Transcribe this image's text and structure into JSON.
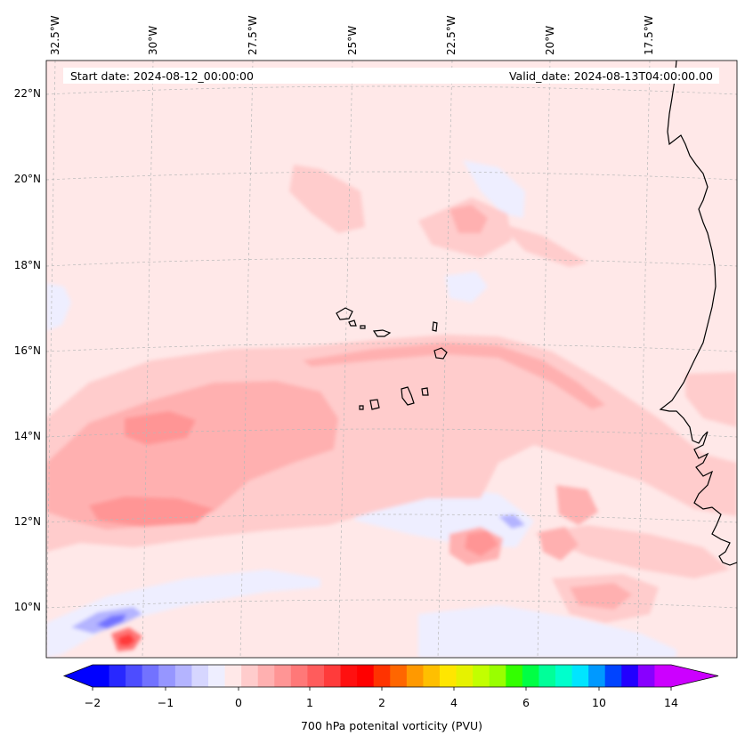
{
  "map": {
    "title_start": "Start date: 2024-08-12_00:00:00",
    "title_valid": "Valid_date: 2024-08-13T04:00:00.00",
    "longitude_labels": [
      "32.5°W",
      "30°W",
      "27.5°W",
      "25°W",
      "22.5°W",
      "20°W",
      "17.5°W"
    ],
    "latitude_labels": [
      "22°N",
      "20°N",
      "18°N",
      "16°N",
      "14°N",
      "12°N",
      "10°N"
    ],
    "extent": {
      "lon_min": -32.8,
      "lon_max": -15.5,
      "lat_min": 8.9,
      "lat_max": 22.8
    },
    "field_name": "700 hPa potential vorticity",
    "features": [
      "Cape Verde islands",
      "West African coastline"
    ]
  },
  "colorbar": {
    "label": "700 hPa potenital vorticity (PVU)",
    "tick_labels": [
      "−2",
      "−1",
      "0",
      "1",
      "2",
      "4",
      "6",
      "10",
      "14"
    ],
    "levels": [
      -2,
      -1,
      0,
      1,
      2,
      4,
      6,
      10,
      14
    ],
    "extend": "both",
    "colors": [
      "#0000ff",
      "#2828ff",
      "#4d4dff",
      "#7272ff",
      "#9696ff",
      "#b4b4ff",
      "#d6d6ff",
      "#eeeeff",
      "#ffe8e8",
      "#ffcccc",
      "#ffb0b0",
      "#ff9595",
      "#ff7878",
      "#ff5c5c",
      "#ff3b3b",
      "#ff1010",
      "#ff0000",
      "#ff3300",
      "#ff6600",
      "#ff9900",
      "#ffbf00",
      "#ffe600",
      "#e6f200",
      "#c2ff00",
      "#99ff00",
      "#33ff00",
      "#00ff44",
      "#00ff99",
      "#00ffcc",
      "#00e5ff",
      "#0099ff",
      "#0044ff",
      "#2200ff",
      "#8800ff",
      "#cc00ff"
    ],
    "under_color": "#0000ff",
    "over_color": "#cc00ff"
  },
  "colors": {
    "background_field": "#ffe8e8",
    "weak_positive": "#ffcccc",
    "moderate_positive": "#ffb0b0",
    "strong_positive": "#ff9595",
    "stronger_positive": "#ff7878",
    "peak_positive": "#ff3b3b",
    "weak_negative": "#eeeeff",
    "moderate_negative": "#b4b4ff",
    "strong_negative": "#7272ff"
  }
}
